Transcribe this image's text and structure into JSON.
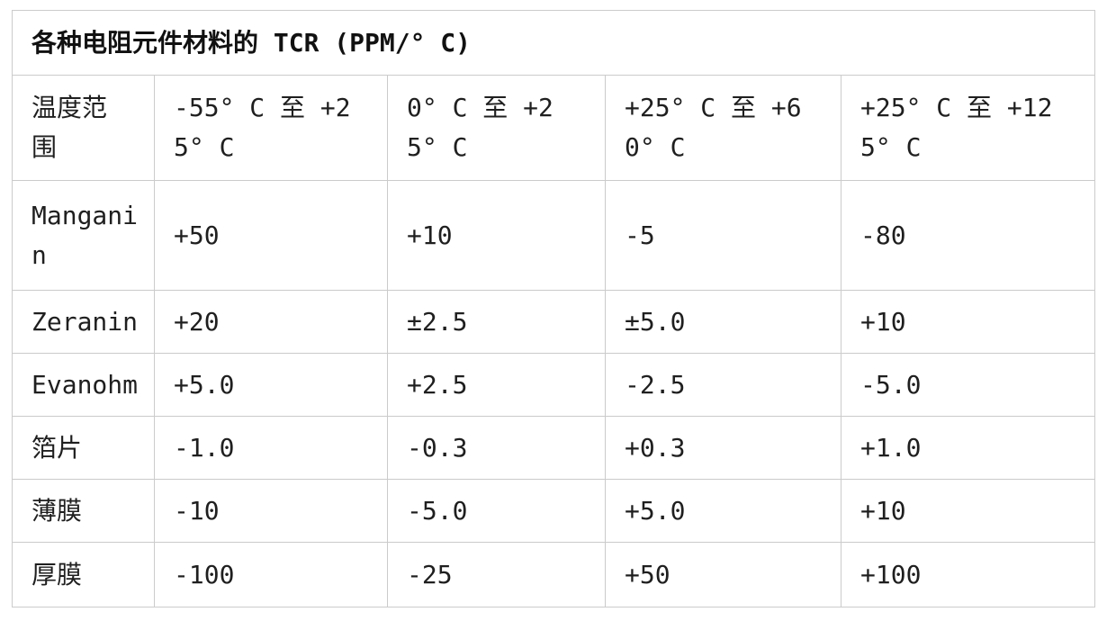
{
  "theme": {
    "background_color": "#ffffff",
    "border_color": "#cbcbcb",
    "text_color": "#1f1f1f"
  },
  "chart_data": {
    "type": "table",
    "title": "各种电阻元件材料的 TCR (PPM/°C)",
    "columns": [
      "温度范围",
      "-55°C 至 +25°C",
      "0°C 至 +25°C",
      "+25°C 至 +60°C",
      "+25°C 至 +125°C"
    ],
    "rows": [
      {
        "material": "Manganin",
        "values": [
          "+50",
          "+10",
          "-5",
          "-80"
        ]
      },
      {
        "material": "Zeranin",
        "values": [
          "+20",
          "±2.5",
          "±5.0",
          "+10"
        ]
      },
      {
        "material": "Evanohm",
        "values": [
          "+5.0",
          "+2.5",
          "-2.5",
          "-5.0"
        ]
      },
      {
        "material": "箔片",
        "values": [
          "-1.0",
          "-0.3",
          "+0.3",
          "+1.0"
        ]
      },
      {
        "material": "薄膜",
        "values": [
          "-10",
          "-5.0",
          "+5.0",
          "+10"
        ]
      },
      {
        "material": "厚膜",
        "values": [
          "-100",
          "-25",
          "+50",
          "+100"
        ]
      }
    ]
  },
  "display": {
    "title": "各种电阻元件材料的 TCR (PPM/° C)",
    "headers": [
      "温度范\n围",
      "-55° C 至 +2\n5° C",
      "0° C 至 +2\n5° C",
      "+25° C 至 +6\n0° C",
      "+25° C 至 +12\n5° C"
    ],
    "materials": [
      "Mangani\nn",
      "Zeranin",
      "Evanohm",
      "箔片",
      "薄膜",
      "厚膜"
    ]
  }
}
